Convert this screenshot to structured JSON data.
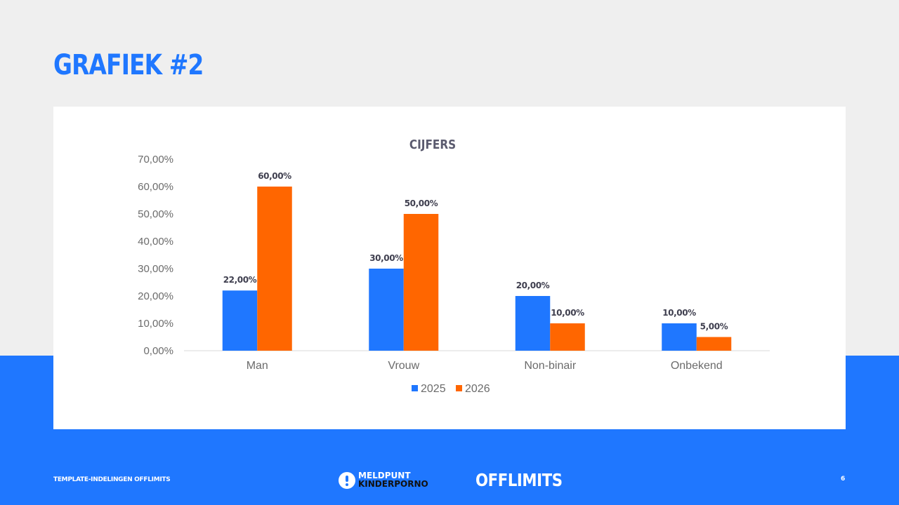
{
  "slide": {
    "title": "GRAFIEK #2",
    "footer_text": "TEMPLATE-INDELINGEN OFFLIMITS",
    "page_number": "6",
    "logo_meldpunt": {
      "line1": "MELDPUNT",
      "line2": "KINDERPORNO"
    },
    "logo_offlimits": "OFFLIMITS"
  },
  "colors": {
    "accent": "#1f77ff",
    "series_2026": "#ff6600",
    "background": "#efefef"
  },
  "chart_data": {
    "type": "bar",
    "title": "CIJFERS",
    "categories": [
      "Man",
      "Vrouw",
      "Non-binair",
      "Onbekend"
    ],
    "series": [
      {
        "name": "2025",
        "color": "#1f77ff",
        "values": [
          22,
          30,
          20,
          10
        ],
        "labels": [
          "22,00%",
          "30,00%",
          "20,00%",
          "10,00%"
        ]
      },
      {
        "name": "2026",
        "color": "#ff6600",
        "values": [
          60,
          50,
          10,
          5
        ],
        "labels": [
          "60,00%",
          "50,00%",
          "10,00%",
          "5,00%"
        ]
      }
    ],
    "ylim": [
      0,
      70
    ],
    "yticks": [
      0,
      10,
      20,
      30,
      40,
      50,
      60,
      70
    ],
    "ytick_labels": [
      "0,00%",
      "10,00%",
      "20,00%",
      "30,00%",
      "40,00%",
      "50,00%",
      "60,00%",
      "70,00%"
    ],
    "grid": false,
    "legend_position": "bottom"
  }
}
